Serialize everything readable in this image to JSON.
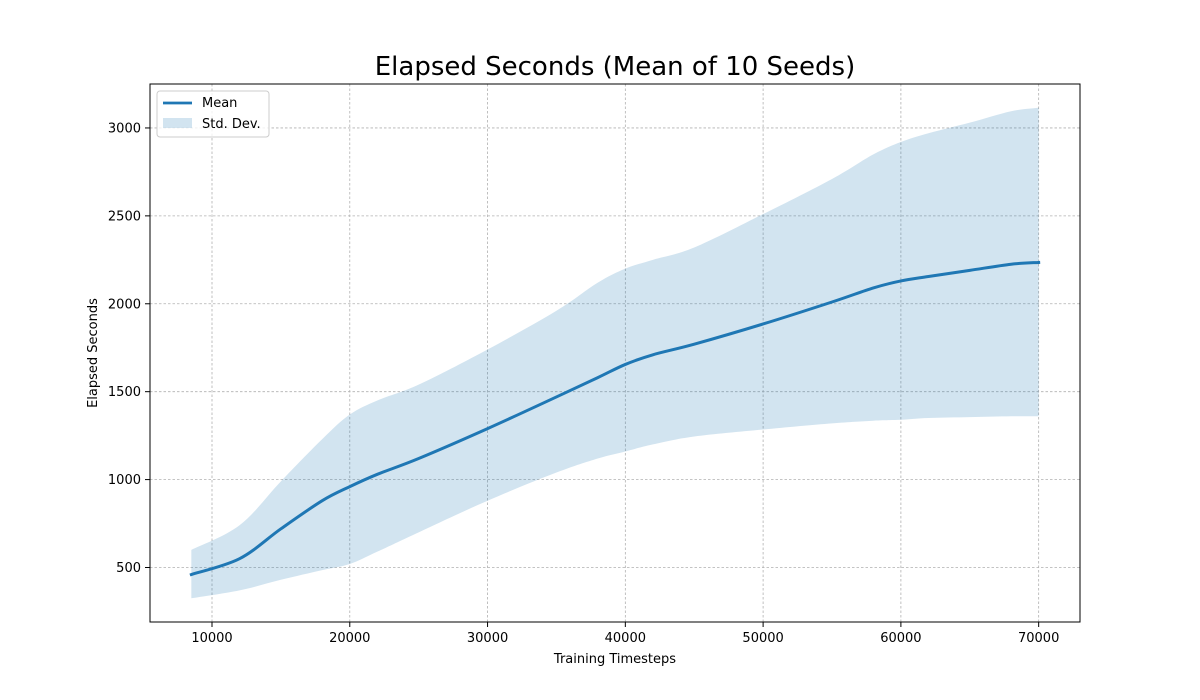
{
  "chart_data": {
    "type": "line",
    "title": "Elapsed Seconds (Mean of 10 Seeds)",
    "xlabel": "Training Timesteps",
    "ylabel": "Elapsed Seconds",
    "xlim": [
      5500,
      73000
    ],
    "ylim": [
      190,
      3250
    ],
    "xticks": [
      10000,
      20000,
      30000,
      40000,
      50000,
      60000,
      70000
    ],
    "yticks": [
      500,
      1000,
      1500,
      2000,
      2500,
      3000
    ],
    "grid": true,
    "legend_position": "top-left",
    "series": [
      {
        "name": "Mean",
        "kind": "line",
        "color": "#1f77b4",
        "x": [
          8500,
          12000,
          15000,
          18000,
          20000,
          22000,
          25000,
          30000,
          35000,
          38000,
          40000,
          42000,
          45000,
          50000,
          55000,
          58000,
          60000,
          62000,
          65000,
          68000,
          70000
        ],
        "y": [
          460,
          550,
          720,
          880,
          960,
          1030,
          1120,
          1290,
          1470,
          1580,
          1655,
          1710,
          1770,
          1885,
          2010,
          2090,
          2130,
          2155,
          2190,
          2225,
          2235
        ]
      },
      {
        "name": "Std. Dev.",
        "kind": "band",
        "color": "#1f77b4",
        "x": [
          8500,
          12000,
          15000,
          18000,
          20000,
          22000,
          25000,
          30000,
          35000,
          38000,
          40000,
          42000,
          45000,
          50000,
          55000,
          58000,
          60000,
          62000,
          65000,
          68000,
          70000
        ],
        "upper": [
          600,
          740,
          990,
          1230,
          1370,
          1450,
          1540,
          1740,
          1960,
          2120,
          2200,
          2250,
          2320,
          2510,
          2710,
          2850,
          2920,
          2970,
          3030,
          3095,
          3115
        ],
        "lower": [
          325,
          370,
          430,
          485,
          520,
          590,
          700,
          880,
          1040,
          1120,
          1160,
          1200,
          1245,
          1285,
          1320,
          1335,
          1340,
          1350,
          1355,
          1360,
          1360
        ]
      }
    ]
  }
}
